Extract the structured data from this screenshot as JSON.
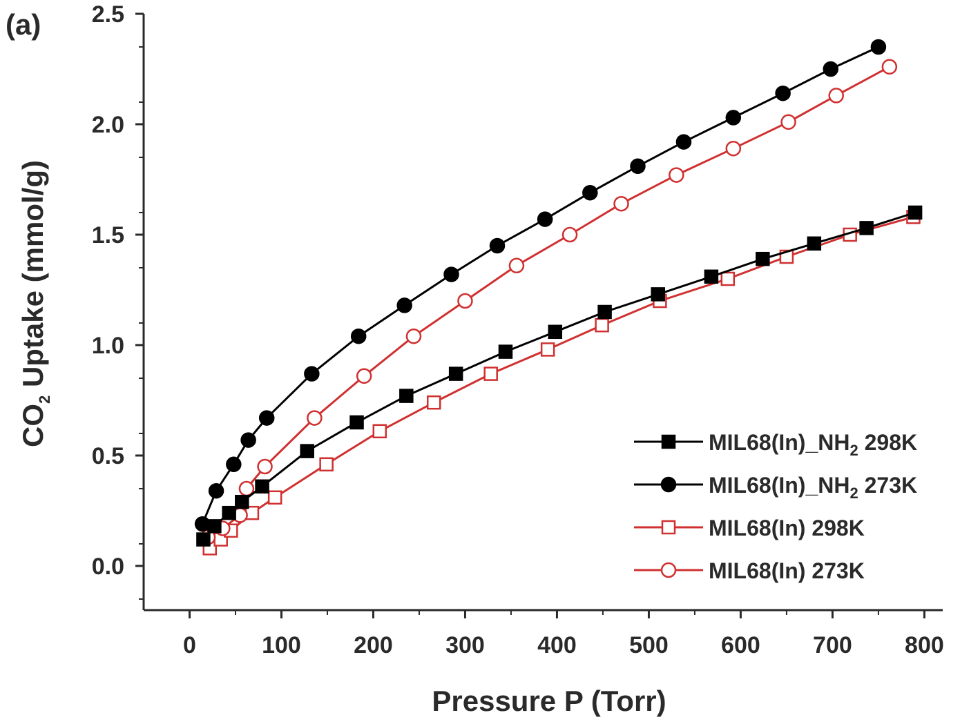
{
  "chart_data": {
    "type": "line",
    "panel_label": "(a)",
    "xlabel": "Pressure P (Torr)",
    "ylabel": {
      "pre": "CO",
      "sub": "2",
      "post": " Uptake (mmol/g)"
    },
    "xlim": [
      -50,
      820
    ],
    "ylim": [
      -0.2,
      2.5
    ],
    "xticks": [
      0,
      100,
      200,
      300,
      400,
      500,
      600,
      700,
      800
    ],
    "xtick_labels": [
      "0",
      "100",
      "200",
      "300",
      "400",
      "500",
      "600",
      "700",
      "800"
    ],
    "yticks": [
      0.0,
      0.5,
      1.0,
      1.5,
      2.0,
      2.5
    ],
    "ytick_labels": [
      "0.0",
      "0.5",
      "1.0",
      "1.5",
      "2.0",
      "2.5"
    ],
    "grid": false,
    "legend_position": "bottom-right",
    "series": [
      {
        "name": "MIL68(In)_NH2 298K",
        "legend": {
          "pre": "MIL68(In)_NH",
          "sub": "2",
          "post": " 298K"
        },
        "color": "#000000",
        "marker": "square",
        "filled": true,
        "x": [
          15,
          27,
          43,
          57,
          79,
          128,
          182,
          236,
          290,
          344,
          398,
          452,
          510,
          568,
          624,
          680,
          737,
          790
        ],
        "y": [
          0.12,
          0.18,
          0.24,
          0.29,
          0.36,
          0.52,
          0.65,
          0.77,
          0.87,
          0.97,
          1.06,
          1.15,
          1.23,
          1.31,
          1.39,
          1.46,
          1.53,
          1.6
        ]
      },
      {
        "name": "MIL68(In)_NH2 273K",
        "legend": {
          "pre": "MIL68(In)_NH",
          "sub": "2",
          "post": " 273K"
        },
        "color": "#000000",
        "marker": "circle",
        "filled": true,
        "x": [
          14,
          29,
          48,
          64,
          84,
          133,
          184,
          234,
          285,
          335,
          387,
          436,
          488,
          538,
          592,
          646,
          698,
          750
        ],
        "y": [
          0.19,
          0.34,
          0.46,
          0.57,
          0.67,
          0.87,
          1.04,
          1.18,
          1.32,
          1.45,
          1.57,
          1.69,
          1.81,
          1.92,
          2.03,
          2.14,
          2.25,
          2.35
        ]
      },
      {
        "name": "MIL68(In) 298K",
        "legend": {
          "pre": "MIL68(In) 298K",
          "sub": "",
          "post": ""
        },
        "color": "#d03030",
        "marker": "square",
        "filled": false,
        "x": [
          22,
          34,
          45,
          68,
          93,
          149,
          207,
          266,
          328,
          390,
          449,
          512,
          586,
          650,
          719,
          788
        ],
        "y": [
          0.08,
          0.12,
          0.16,
          0.24,
          0.31,
          0.46,
          0.61,
          0.74,
          0.87,
          0.98,
          1.09,
          1.2,
          1.3,
          1.4,
          1.5,
          1.58
        ]
      },
      {
        "name": "MIL68(In) 273K",
        "legend": {
          "pre": "MIL68(In) 273K",
          "sub": "",
          "post": ""
        },
        "color": "#d03030",
        "marker": "circle",
        "filled": false,
        "x": [
          20,
          36,
          55,
          62,
          82,
          136,
          190,
          244,
          300,
          356,
          414,
          470,
          530,
          592,
          652,
          704,
          762
        ],
        "y": [
          0.13,
          0.17,
          0.23,
          0.35,
          0.45,
          0.67,
          0.86,
          1.04,
          1.2,
          1.36,
          1.5,
          1.64,
          1.77,
          1.89,
          2.01,
          2.13,
          2.26
        ]
      }
    ]
  }
}
